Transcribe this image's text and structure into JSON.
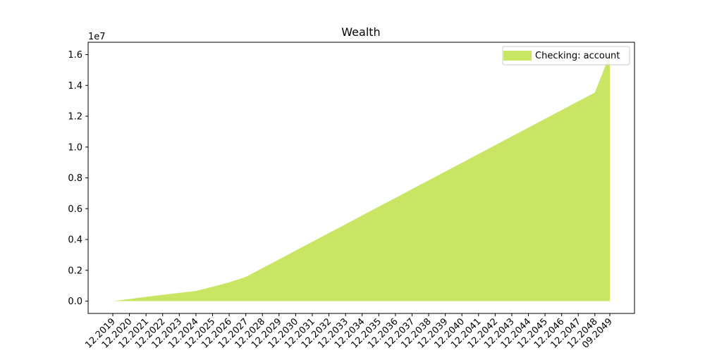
{
  "chart_data": {
    "type": "area",
    "title": "Wealth",
    "xlabel": "",
    "ylabel": "",
    "y_offset_label": "1e7",
    "ylim": [
      -0.08,
      1.68
    ],
    "yticks": [
      0.0,
      0.2,
      0.4,
      0.6,
      0.8,
      1.0,
      1.2,
      1.4,
      1.6
    ],
    "ytick_labels": [
      "0.0",
      "0.2",
      "0.4",
      "0.6",
      "0.8",
      "1.0",
      "1.2",
      "1.4",
      "1.6"
    ],
    "x_tick_labels": [
      "12.2019",
      "12.2020",
      "12.2021",
      "12.2022",
      "12.2023",
      "12.2024",
      "12.2025",
      "12.2026",
      "12.2027",
      "12.2028",
      "12.2029",
      "12.2030",
      "12.2031",
      "12.2032",
      "12.2033",
      "12.2034",
      "12.2035",
      "12.2036",
      "12.2037",
      "12.2038",
      "12.2039",
      "12.2040",
      "12.2041",
      "12.2042",
      "12.2043",
      "12.2044",
      "12.2045",
      "12.2046",
      "12.2047",
      "12.2048",
      "09.2049"
    ],
    "x": [
      "12.2019",
      "12.2020",
      "12.2021",
      "12.2022",
      "12.2023",
      "12.2024",
      "12.2025",
      "12.2026",
      "12.2027",
      "12.2028",
      "12.2029",
      "12.2030",
      "12.2031",
      "12.2032",
      "12.2033",
      "12.2034",
      "12.2035",
      "12.2036",
      "12.2037",
      "12.2038",
      "12.2039",
      "12.2040",
      "12.2041",
      "12.2042",
      "12.2043",
      "12.2044",
      "12.2045",
      "12.2046",
      "12.2047",
      "12.2048",
      "09.2049"
    ],
    "series": [
      {
        "name": "Checking: account",
        "color": "#c8e664",
        "values": [
          0.0,
          0.014,
          0.028,
          0.041,
          0.054,
          0.066,
          0.093,
          0.122,
          0.157,
          0.214,
          0.271,
          0.328,
          0.385,
          0.442,
          0.499,
          0.556,
          0.613,
          0.67,
          0.727,
          0.784,
          0.841,
          0.898,
          0.955,
          1.012,
          1.069,
          1.126,
          1.183,
          1.24,
          1.297,
          1.354,
          1.6
        ]
      }
    ],
    "legend": "top-right",
    "grid": false
  }
}
